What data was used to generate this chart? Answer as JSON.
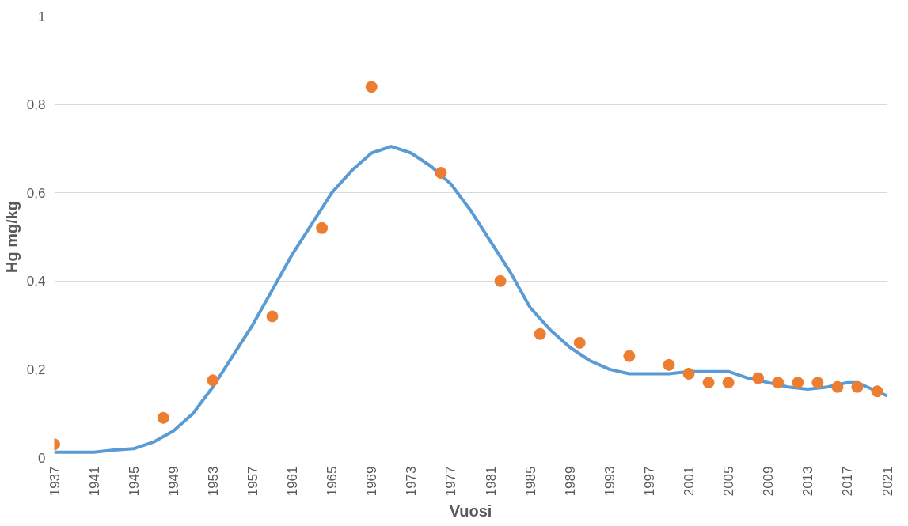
{
  "chart_data": {
    "type": "scatter",
    "xlabel": "Vuosi",
    "ylabel": "Hg mg/kg",
    "xlim": [
      1937,
      2021
    ],
    "ylim": [
      0,
      1
    ],
    "xticks": [
      1937,
      1941,
      1945,
      1949,
      1953,
      1957,
      1961,
      1965,
      1969,
      1973,
      1977,
      1981,
      1985,
      1989,
      1993,
      1997,
      2001,
      2005,
      2009,
      2013,
      2017,
      2021
    ],
    "yticks": [
      0,
      {
        "value": 0.2,
        "label": "0,2"
      },
      {
        "value": 0.4,
        "label": "0,4"
      },
      {
        "value": 0.6,
        "label": "0,6"
      },
      {
        "value": 0.8,
        "label": "0,8"
      },
      1
    ],
    "grid": "y",
    "series": [
      {
        "type": "line",
        "color": "#5b9bd5",
        "marker": "none",
        "line_style": "solid",
        "x": [
          1937,
          1941,
          1943,
          1945,
          1947,
          1949,
          1951,
          1953,
          1955,
          1957,
          1959,
          1961,
          1963,
          1965,
          1967,
          1969,
          1971,
          1973,
          1975,
          1977,
          1979,
          1981,
          1983,
          1985,
          1987,
          1989,
          1991,
          1993,
          1995,
          1997,
          1999,
          2001,
          2003,
          2005,
          2007,
          2009,
          2011,
          2013,
          2015,
          2017,
          2018,
          2019,
          2021
        ],
        "values": [
          0.012,
          0.012,
          0.017,
          0.02,
          0.035,
          0.06,
          0.1,
          0.16,
          0.23,
          0.3,
          0.38,
          0.46,
          0.53,
          0.6,
          0.65,
          0.69,
          0.705,
          0.69,
          0.66,
          0.62,
          0.56,
          0.49,
          0.42,
          0.34,
          0.29,
          0.25,
          0.22,
          0.2,
          0.19,
          0.19,
          0.19,
          0.195,
          0.195,
          0.195,
          0.18,
          0.17,
          0.16,
          0.155,
          0.16,
          0.17,
          0.17,
          0.16,
          0.14
        ]
      },
      {
        "color": "#ed7d31",
        "marker": "circle",
        "x": [
          1937,
          1948,
          1953,
          1959,
          1964,
          1969,
          1976,
          1982,
          1986,
          1990,
          1995,
          1999,
          2001,
          2003,
          2005,
          2008,
          2010,
          2012,
          2014,
          2016,
          2018,
          2020
        ],
        "values": [
          0.03,
          0.09,
          0.175,
          0.32,
          0.52,
          0.84,
          0.645,
          0.4,
          0.28,
          0.26,
          0.23,
          0.21,
          0.19,
          0.17,
          0.17,
          0.18,
          0.17,
          0.17,
          0.17,
          0.16,
          0.16,
          0.15
        ]
      }
    ]
  }
}
